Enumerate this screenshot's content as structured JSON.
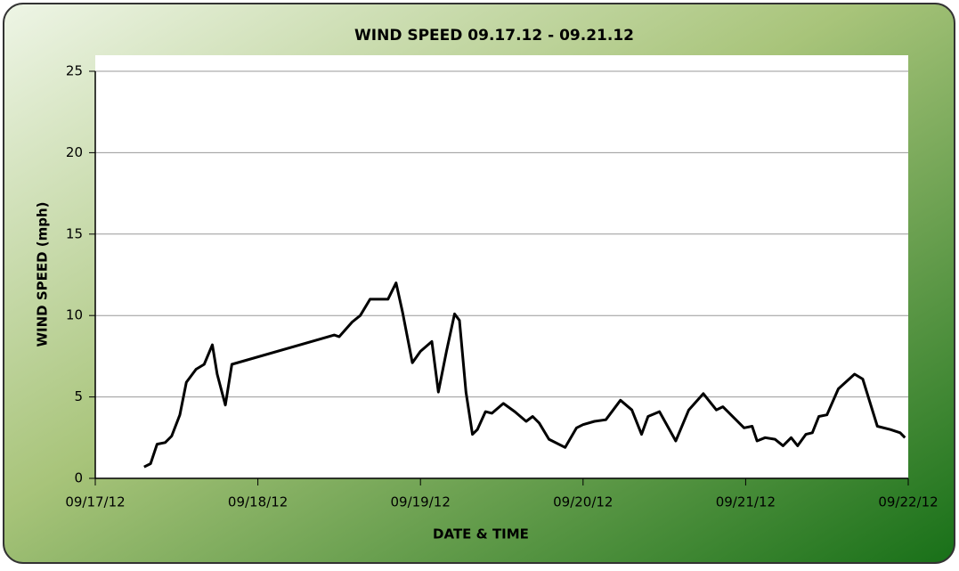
{
  "chart_data": {
    "type": "line",
    "title": "WIND SPEED 09.17.12 - 09.21.12",
    "x_label": "DATE & TIME",
    "y_label": "WIND SPEED (mph)",
    "x": [
      0.3,
      0.34,
      0.38,
      0.43,
      0.47,
      0.52,
      0.56,
      0.62,
      0.67,
      0.72,
      0.75,
      0.8,
      0.84,
      1.47,
      1.5,
      1.58,
      1.63,
      1.69,
      1.8,
      1.85,
      1.89,
      1.95,
      2.0,
      2.07,
      2.11,
      2.16,
      2.21,
      2.24,
      2.28,
      2.32,
      2.35,
      2.4,
      2.44,
      2.51,
      2.58,
      2.65,
      2.69,
      2.73,
      2.79,
      2.89,
      2.96,
      3.0,
      3.07,
      3.14,
      3.23,
      3.3,
      3.36,
      3.4,
      3.47,
      3.57,
      3.65,
      3.74,
      3.82,
      3.86,
      3.99,
      4.04,
      4.07,
      4.12,
      4.18,
      4.23,
      4.28,
      4.32,
      4.37,
      4.41,
      4.45,
      4.5,
      4.57,
      4.67,
      4.72,
      4.81,
      4.89,
      4.95,
      4.98
    ],
    "series": [
      {
        "name": "WIND SPEED",
        "color": "#000000",
        "values": [
          0.7,
          0.9,
          2.1,
          2.2,
          2.6,
          3.9,
          5.9,
          6.7,
          7.0,
          8.2,
          6.4,
          4.5,
          7.0,
          8.8,
          8.7,
          9.6,
          10.0,
          11.0,
          11.0,
          12.0,
          10.2,
          7.1,
          7.8,
          8.4,
          5.3,
          7.8,
          10.1,
          9.7,
          5.3,
          2.7,
          3.0,
          4.1,
          4.0,
          4.6,
          4.1,
          3.5,
          3.8,
          3.4,
          2.4,
          1.9,
          3.1,
          3.3,
          3.5,
          3.6,
          4.8,
          4.2,
          2.7,
          3.8,
          4.1,
          2.3,
          4.2,
          5.2,
          4.2,
          4.4,
          3.1,
          3.2,
          2.3,
          2.5,
          2.4,
          2.0,
          2.5,
          2.0,
          2.7,
          2.8,
          3.8,
          3.9,
          5.5,
          6.4,
          6.1,
          3.2,
          3.0,
          2.8,
          2.5
        ]
      }
    ],
    "xlim": [
      0,
      5
    ],
    "xticks": [
      {
        "value": 0,
        "label": "09/17/12"
      },
      {
        "value": 1,
        "label": "09/18/12"
      },
      {
        "value": 2,
        "label": "09/19/12"
      },
      {
        "value": 3,
        "label": "09/20/12"
      },
      {
        "value": 4,
        "label": "09/21/12"
      },
      {
        "value": 5,
        "label": "09/22/12"
      }
    ],
    "ylim": [
      0,
      25
    ],
    "yticks": [
      0,
      5,
      10,
      15,
      20,
      25
    ],
    "grid": true
  }
}
